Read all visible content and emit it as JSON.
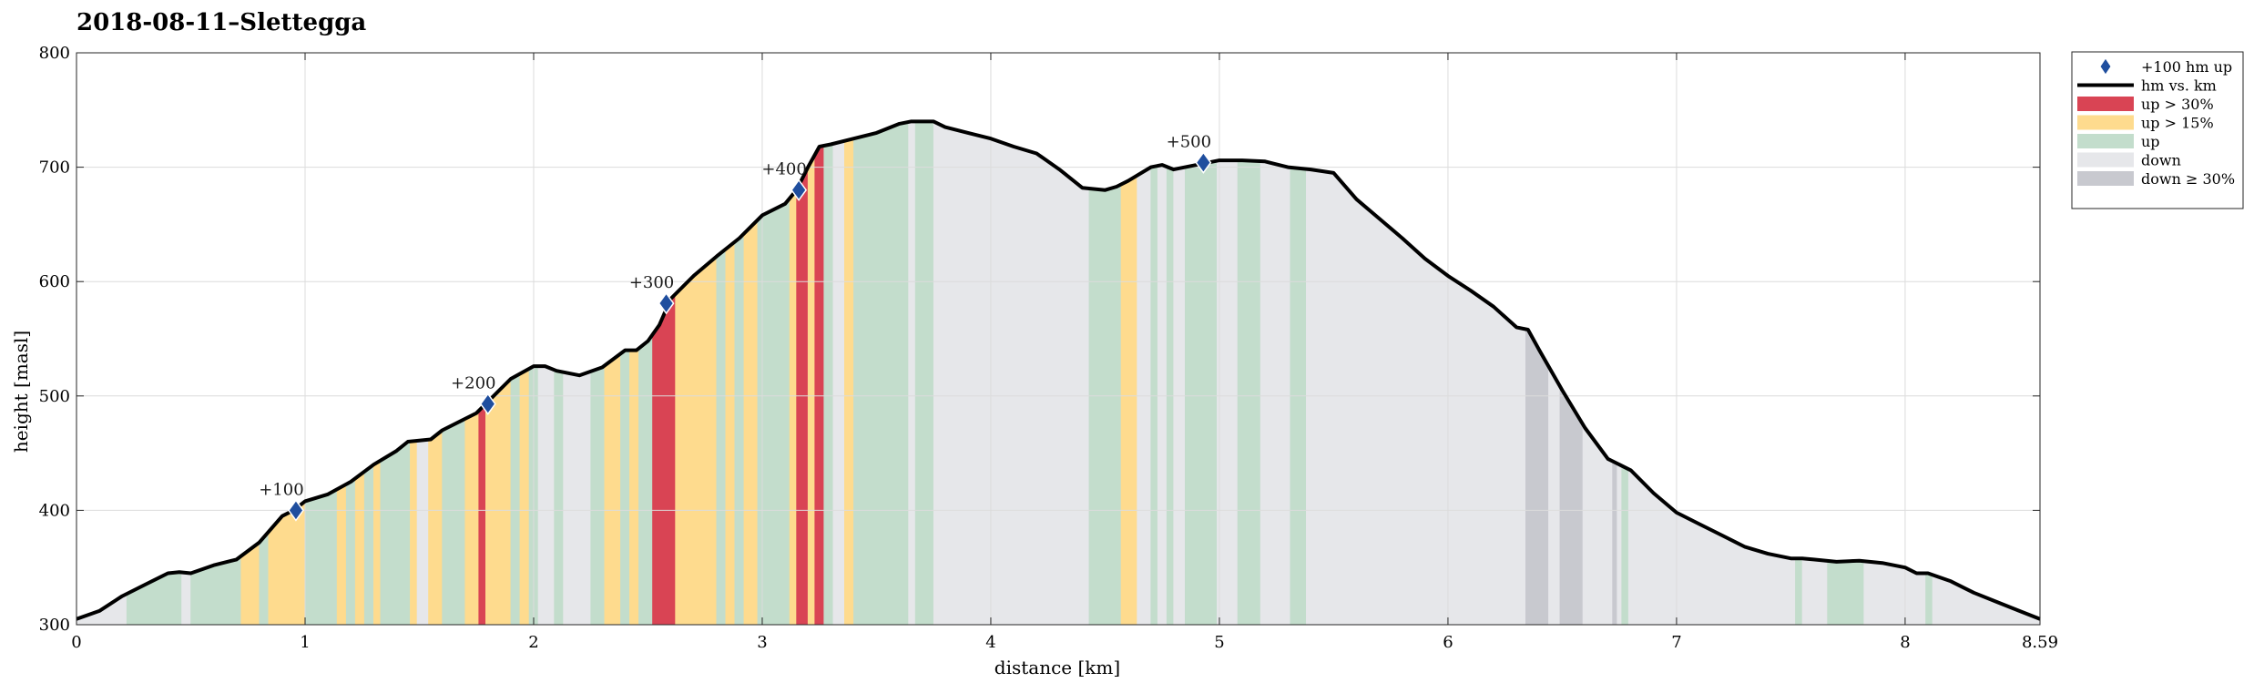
{
  "chart_data": {
    "type": "area",
    "title": "2018-08-11–Slettegga",
    "xlabel": "distance [km]",
    "ylabel": "height [masl]",
    "xlim": [
      0,
      8.59
    ],
    "ylim": [
      300,
      800
    ],
    "x_ticks": [
      0,
      1,
      2,
      3,
      4,
      5,
      6,
      7,
      8,
      8.59
    ],
    "x_tick_labels": [
      "0",
      "1",
      "2",
      "3",
      "4",
      "5",
      "6",
      "7",
      "8",
      "8.59"
    ],
    "y_ticks": [
      300,
      400,
      500,
      600,
      700,
      800
    ],
    "y_tick_labels": [
      "300",
      "400",
      "500",
      "600",
      "700",
      "800"
    ],
    "grid": true,
    "legend_position": "outside-top-right",
    "colors": {
      "line": "#000000",
      "up_gt_30": "#d94454",
      "up_gt_15": "#fedb8e",
      "up": "#c3ddcc",
      "down": "#e6e7ea",
      "down_ge_30": "#c8c9cf",
      "marker": "#1f4e9e",
      "grid": "#dcdcdc"
    },
    "legend": [
      {
        "key": "marker",
        "label": "+100 hm up"
      },
      {
        "key": "line",
        "label": "hm vs. km"
      },
      {
        "key": "up_gt_30",
        "label": "up > 30%"
      },
      {
        "key": "up_gt_15",
        "label": "up > 15%"
      },
      {
        "key": "up",
        "label": "up"
      },
      {
        "key": "down",
        "label": "down"
      },
      {
        "key": "down_ge_30",
        "label": "down ≥ 30%"
      }
    ],
    "profile": {
      "x": [
        0,
        0.1,
        0.2,
        0.3,
        0.4,
        0.45,
        0.5,
        0.6,
        0.7,
        0.8,
        0.9,
        0.95,
        1.0,
        1.1,
        1.2,
        1.3,
        1.4,
        1.45,
        1.55,
        1.6,
        1.7,
        1.75,
        1.8,
        1.85,
        1.9,
        2.0,
        2.05,
        2.1,
        2.15,
        2.2,
        2.3,
        2.4,
        2.45,
        2.5,
        2.55,
        2.6,
        2.7,
        2.8,
        2.9,
        3.0,
        3.1,
        3.15,
        3.2,
        3.25,
        3.3,
        3.4,
        3.5,
        3.6,
        3.65,
        3.75,
        3.8,
        3.9,
        4.0,
        4.1,
        4.2,
        4.3,
        4.4,
        4.5,
        4.55,
        4.6,
        4.7,
        4.75,
        4.8,
        4.85,
        4.9,
        5.0,
        5.1,
        5.2,
        5.3,
        5.4,
        5.5,
        5.6,
        5.7,
        5.8,
        5.9,
        6.0,
        6.1,
        6.2,
        6.3,
        6.35,
        6.4,
        6.5,
        6.6,
        6.7,
        6.75,
        6.8,
        6.9,
        7.0,
        7.1,
        7.2,
        7.3,
        7.4,
        7.5,
        7.55,
        7.6,
        7.7,
        7.8,
        7.9,
        8.0,
        8.05,
        8.1,
        8.2,
        8.3,
        8.4,
        8.5,
        8.59
      ],
      "y": [
        305,
        312,
        325,
        335,
        345,
        346,
        345,
        352,
        357,
        372,
        395,
        400,
        408,
        414,
        425,
        440,
        452,
        460,
        462,
        470,
        480,
        485,
        495,
        505,
        515,
        526,
        526,
        522,
        520,
        518,
        525,
        540,
        540,
        548,
        562,
        585,
        605,
        622,
        638,
        658,
        668,
        680,
        700,
        718,
        720,
        725,
        730,
        738,
        740,
        740,
        735,
        730,
        725,
        718,
        712,
        698,
        682,
        680,
        683,
        688,
        700,
        702,
        698,
        700,
        702,
        706,
        706,
        705,
        700,
        698,
        695,
        672,
        655,
        638,
        620,
        605,
        592,
        578,
        560,
        558,
        540,
        505,
        472,
        445,
        440,
        435,
        415,
        398,
        388,
        378,
        368,
        362,
        358,
        358,
        357,
        355,
        356,
        354,
        350,
        345,
        345,
        338,
        328,
        320,
        312,
        305
      ]
    },
    "milestones": [
      {
        "x": 0.96,
        "y": 400,
        "label": "+100"
      },
      {
        "x": 1.8,
        "y": 493,
        "label": "+200"
      },
      {
        "x": 2.58,
        "y": 581,
        "label": "+300"
      },
      {
        "x": 3.16,
        "y": 680,
        "label": "+400"
      },
      {
        "x": 4.93,
        "y": 704,
        "label": "+500"
      }
    ],
    "segments": [
      {
        "from": 0,
        "to": 0.22,
        "type": "down"
      },
      {
        "from": 0.22,
        "to": 0.46,
        "type": "up"
      },
      {
        "from": 0.46,
        "to": 0.5,
        "type": "down"
      },
      {
        "from": 0.5,
        "to": 0.72,
        "type": "up"
      },
      {
        "from": 0.72,
        "to": 0.8,
        "type": "up_gt_15"
      },
      {
        "from": 0.8,
        "to": 0.84,
        "type": "up"
      },
      {
        "from": 0.84,
        "to": 1.0,
        "type": "up_gt_15"
      },
      {
        "from": 1.0,
        "to": 1.14,
        "type": "up"
      },
      {
        "from": 1.14,
        "to": 1.18,
        "type": "up_gt_15"
      },
      {
        "from": 1.18,
        "to": 1.22,
        "type": "up"
      },
      {
        "from": 1.22,
        "to": 1.26,
        "type": "up_gt_15"
      },
      {
        "from": 1.26,
        "to": 1.3,
        "type": "up"
      },
      {
        "from": 1.3,
        "to": 1.33,
        "type": "up_gt_15"
      },
      {
        "from": 1.33,
        "to": 1.46,
        "type": "up"
      },
      {
        "from": 1.46,
        "to": 1.49,
        "type": "up_gt_15"
      },
      {
        "from": 1.49,
        "to": 1.54,
        "type": "down"
      },
      {
        "from": 1.54,
        "to": 1.6,
        "type": "up_gt_15"
      },
      {
        "from": 1.6,
        "to": 1.7,
        "type": "up"
      },
      {
        "from": 1.7,
        "to": 1.76,
        "type": "up_gt_15"
      },
      {
        "from": 1.76,
        "to": 1.79,
        "type": "up_gt_30"
      },
      {
        "from": 1.79,
        "to": 1.9,
        "type": "up_gt_15"
      },
      {
        "from": 1.9,
        "to": 1.94,
        "type": "up"
      },
      {
        "from": 1.94,
        "to": 1.98,
        "type": "up_gt_15"
      },
      {
        "from": 1.98,
        "to": 2.02,
        "type": "up"
      },
      {
        "from": 2.02,
        "to": 2.09,
        "type": "down"
      },
      {
        "from": 2.09,
        "to": 2.13,
        "type": "up"
      },
      {
        "from": 2.13,
        "to": 2.25,
        "type": "down"
      },
      {
        "from": 2.25,
        "to": 2.31,
        "type": "up"
      },
      {
        "from": 2.31,
        "to": 2.38,
        "type": "up_gt_15"
      },
      {
        "from": 2.38,
        "to": 2.42,
        "type": "up"
      },
      {
        "from": 2.42,
        "to": 2.46,
        "type": "up_gt_15"
      },
      {
        "from": 2.46,
        "to": 2.52,
        "type": "up"
      },
      {
        "from": 2.52,
        "to": 2.62,
        "type": "up_gt_30"
      },
      {
        "from": 2.62,
        "to": 2.8,
        "type": "up_gt_15"
      },
      {
        "from": 2.8,
        "to": 2.84,
        "type": "up"
      },
      {
        "from": 2.84,
        "to": 2.88,
        "type": "up_gt_15"
      },
      {
        "from": 2.88,
        "to": 2.92,
        "type": "up"
      },
      {
        "from": 2.92,
        "to": 2.98,
        "type": "up_gt_15"
      },
      {
        "from": 2.98,
        "to": 3.12,
        "type": "up"
      },
      {
        "from": 3.12,
        "to": 3.15,
        "type": "up_gt_15"
      },
      {
        "from": 3.15,
        "to": 3.2,
        "type": "up_gt_30"
      },
      {
        "from": 3.2,
        "to": 3.23,
        "type": "up_gt_15"
      },
      {
        "from": 3.23,
        "to": 3.27,
        "type": "up_gt_30"
      },
      {
        "from": 3.27,
        "to": 3.31,
        "type": "up"
      },
      {
        "from": 3.31,
        "to": 3.36,
        "type": "down"
      },
      {
        "from": 3.36,
        "to": 3.4,
        "type": "up_gt_15"
      },
      {
        "from": 3.4,
        "to": 3.64,
        "type": "up"
      },
      {
        "from": 3.64,
        "to": 3.67,
        "type": "down"
      },
      {
        "from": 3.67,
        "to": 3.75,
        "type": "up"
      },
      {
        "from": 3.75,
        "to": 4.43,
        "type": "down"
      },
      {
        "from": 4.43,
        "to": 4.57,
        "type": "up"
      },
      {
        "from": 4.57,
        "to": 4.64,
        "type": "up_gt_15"
      },
      {
        "from": 4.64,
        "to": 4.7,
        "type": "down"
      },
      {
        "from": 4.7,
        "to": 4.73,
        "type": "up"
      },
      {
        "from": 4.73,
        "to": 4.77,
        "type": "down"
      },
      {
        "from": 4.77,
        "to": 4.8,
        "type": "up"
      },
      {
        "from": 4.8,
        "to": 4.85,
        "type": "down"
      },
      {
        "from": 4.85,
        "to": 4.99,
        "type": "up"
      },
      {
        "from": 4.99,
        "to": 5.08,
        "type": "down"
      },
      {
        "from": 5.08,
        "to": 5.18,
        "type": "up"
      },
      {
        "from": 5.18,
        "to": 5.31,
        "type": "down"
      },
      {
        "from": 5.31,
        "to": 5.38,
        "type": "up"
      },
      {
        "from": 5.38,
        "to": 6.34,
        "type": "down"
      },
      {
        "from": 6.34,
        "to": 6.44,
        "type": "down_ge_30"
      },
      {
        "from": 6.44,
        "to": 6.49,
        "type": "down"
      },
      {
        "from": 6.49,
        "to": 6.59,
        "type": "down_ge_30"
      },
      {
        "from": 6.59,
        "to": 6.72,
        "type": "down"
      },
      {
        "from": 6.72,
        "to": 6.74,
        "type": "down_ge_30"
      },
      {
        "from": 6.74,
        "to": 6.76,
        "type": "down"
      },
      {
        "from": 6.76,
        "to": 6.79,
        "type": "up"
      },
      {
        "from": 6.79,
        "to": 7.52,
        "type": "down"
      },
      {
        "from": 7.52,
        "to": 7.55,
        "type": "up"
      },
      {
        "from": 7.55,
        "to": 7.66,
        "type": "down"
      },
      {
        "from": 7.66,
        "to": 7.82,
        "type": "up"
      },
      {
        "from": 7.82,
        "to": 8.09,
        "type": "down"
      },
      {
        "from": 8.09,
        "to": 8.12,
        "type": "up"
      },
      {
        "from": 8.12,
        "to": 8.59,
        "type": "down"
      }
    ]
  }
}
